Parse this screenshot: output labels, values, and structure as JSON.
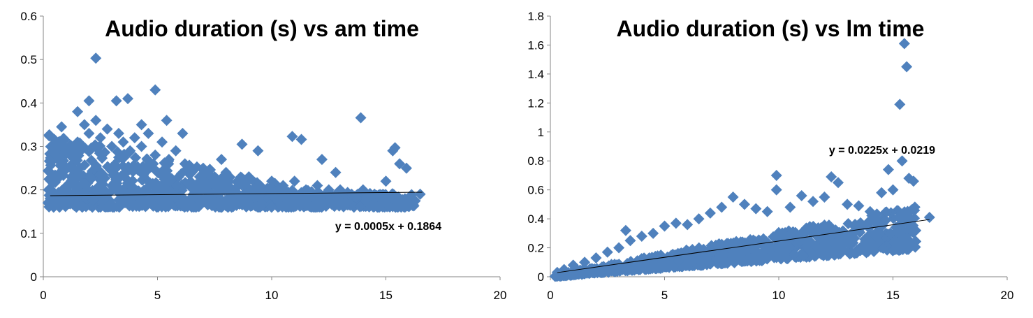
{
  "chart_data": [
    {
      "type": "scatter",
      "title": "Audio duration (s) vs am time",
      "xlabel": "",
      "ylabel": "",
      "xlim": [
        0,
        20
      ],
      "ylim": [
        0,
        0.6
      ],
      "x_ticks": [
        "0",
        "5",
        "10",
        "15",
        "20"
      ],
      "y_ticks": [
        "0",
        "0.1",
        "0.2",
        "0.3",
        "0.4",
        "0.5",
        "0.6"
      ],
      "grid": false,
      "marker": "diamond",
      "marker_color": "#4F81BD",
      "series": [
        {
          "x": [
            0.3,
            0.5,
            0.8,
            1.0,
            1.2,
            1.5,
            1.8,
            2.0,
            2.3,
            2.5,
            2.8,
            3.0,
            3.3,
            3.5,
            3.8,
            4.0,
            4.3,
            4.6,
            4.9,
            5.2,
            5.5,
            5.8,
            6.2,
            6.5,
            7.0,
            7.5,
            8.0,
            8.5,
            9.0,
            9.5,
            10.0,
            10.5,
            11.0,
            11.5,
            12.0,
            12.5,
            13.0,
            13.5,
            14.0,
            14.5,
            15.0,
            15.3,
            15.6,
            15.9,
            16.5,
            2.3,
            4.9,
            3.2,
            3.7,
            2.0,
            1.5,
            0.8,
            13.9,
            10.9,
            11.3,
            15.4,
            8.7,
            6.1,
            4.3,
            5.4,
            7.8,
            9.4,
            12.2,
            12.8
          ],
          "y": [
            0.18,
            0.23,
            0.19,
            0.29,
            0.25,
            0.31,
            0.35,
            0.33,
            0.36,
            0.32,
            0.34,
            0.3,
            0.33,
            0.31,
            0.29,
            0.32,
            0.3,
            0.33,
            0.28,
            0.31,
            0.27,
            0.29,
            0.26,
            0.24,
            0.25,
            0.23,
            0.24,
            0.22,
            0.23,
            0.21,
            0.22,
            0.21,
            0.22,
            0.2,
            0.21,
            0.2,
            0.2,
            0.19,
            0.2,
            0.19,
            0.22,
            0.29,
            0.26,
            0.25,
            0.19,
            0.503,
            0.43,
            0.405,
            0.41,
            0.405,
            0.38,
            0.345,
            0.366,
            0.323,
            0.316,
            0.297,
            0.305,
            0.33,
            0.35,
            0.36,
            0.27,
            0.29,
            0.27,
            0.24
          ],
          "cloud": {
            "x_min": 0.2,
            "x_max": 16.3,
            "y_base": 0.16,
            "y_spread": 0.17
          }
        }
      ],
      "trendline": {
        "slope": 0.0005,
        "intercept": 0.1864,
        "x_range": [
          0.3,
          16.6
        ],
        "label": "y = 0.0005x + 0.1864"
      }
    },
    {
      "type": "scatter",
      "title": "Audio duration (s) vs lm time",
      "xlabel": "",
      "ylabel": "",
      "xlim": [
        0,
        20
      ],
      "ylim": [
        0,
        1.8
      ],
      "x_ticks": [
        "0",
        "5",
        "10",
        "15",
        "20"
      ],
      "y_ticks": [
        "0",
        "0.2",
        "0.4",
        "0.6",
        "0.8",
        "1",
        "1.2",
        "1.4",
        "1.6",
        "1.8"
      ],
      "grid": false,
      "marker": "diamond",
      "marker_color": "#4F81BD",
      "series": [
        {
          "x": [
            0.3,
            0.6,
            1.0,
            1.5,
            2.0,
            2.5,
            3.0,
            3.3,
            3.5,
            4.0,
            4.5,
            5.0,
            5.5,
            6.0,
            6.5,
            7.0,
            7.5,
            8.0,
            8.5,
            9.0,
            9.5,
            9.9,
            9.9,
            10.5,
            11.0,
            11.5,
            12.0,
            12.3,
            12.6,
            13.0,
            13.5,
            14.0,
            14.5,
            14.8,
            15.0,
            15.3,
            15.4,
            15.5,
            15.6,
            15.7,
            15.9,
            16.6
          ],
          "y": [
            0.03,
            0.05,
            0.08,
            0.1,
            0.13,
            0.17,
            0.2,
            0.32,
            0.25,
            0.28,
            0.3,
            0.35,
            0.37,
            0.36,
            0.4,
            0.44,
            0.48,
            0.55,
            0.5,
            0.47,
            0.45,
            0.7,
            0.6,
            0.48,
            0.56,
            0.52,
            0.55,
            0.69,
            0.65,
            0.5,
            0.49,
            0.45,
            0.58,
            0.74,
            0.6,
            1.19,
            0.8,
            1.61,
            1.45,
            0.68,
            0.66,
            0.41
          ]
        }
      ],
      "cloud": {
        "x_min": 0.2,
        "x_max": 16.0
      },
      "trendline": {
        "slope": 0.0225,
        "intercept": 0.0219,
        "x_range": [
          0.3,
          16.6
        ],
        "label": "y = 0.0225x + 0.0219"
      }
    }
  ]
}
